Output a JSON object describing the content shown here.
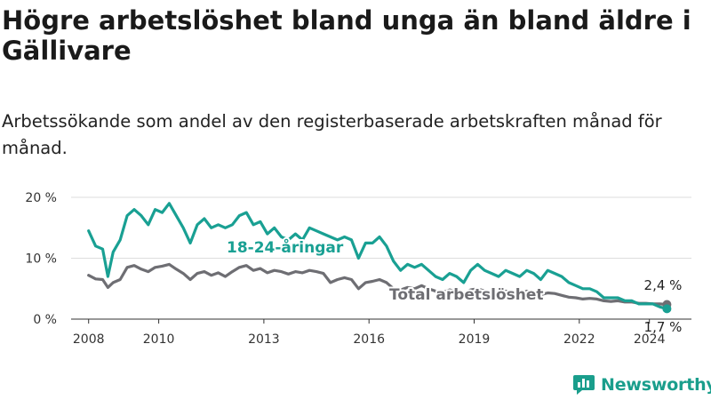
{
  "title": "Högre arbetslöshet bland unga än bland äldre i Gällivare",
  "subtitle": "Arbetssökande som andel av den registerbaserade arbetskraften månad för månad.",
  "brand": {
    "name": "Newsworthy",
    "color": "#1a9e8c"
  },
  "chart_data": {
    "type": "line",
    "ylim": [
      0,
      20
    ],
    "y_ticks": [
      0,
      10,
      20
    ],
    "y_tick_labels": [
      "0 %",
      "10 %",
      "20 %"
    ],
    "x_ticks": [
      2008,
      2010,
      2013,
      2016,
      2019,
      2022,
      2024
    ],
    "x_tick_labels": [
      "2008",
      "2010",
      "2013",
      "2016",
      "2019",
      "2022",
      "2024"
    ],
    "grid": true,
    "series": [
      {
        "name": "18-24-åringar",
        "color": "#19a093",
        "points": [
          [
            2008.0,
            14.5
          ],
          [
            2008.2,
            12.0
          ],
          [
            2008.4,
            11.5
          ],
          [
            2008.55,
            7.0
          ],
          [
            2008.7,
            11.0
          ],
          [
            2008.9,
            13.0
          ],
          [
            2009.1,
            17.0
          ],
          [
            2009.3,
            18.0
          ],
          [
            2009.5,
            17.0
          ],
          [
            2009.7,
            15.5
          ],
          [
            2009.9,
            18.0
          ],
          [
            2010.1,
            17.5
          ],
          [
            2010.3,
            19.0
          ],
          [
            2010.5,
            17.0
          ],
          [
            2010.7,
            15.0
          ],
          [
            2010.9,
            12.5
          ],
          [
            2011.1,
            15.5
          ],
          [
            2011.3,
            16.5
          ],
          [
            2011.5,
            15.0
          ],
          [
            2011.7,
            15.5
          ],
          [
            2011.9,
            15.0
          ],
          [
            2012.1,
            15.5
          ],
          [
            2012.3,
            17.0
          ],
          [
            2012.5,
            17.5
          ],
          [
            2012.7,
            15.5
          ],
          [
            2012.9,
            16.0
          ],
          [
            2013.1,
            14.0
          ],
          [
            2013.3,
            15.0
          ],
          [
            2013.5,
            13.5
          ],
          [
            2013.7,
            13.0
          ],
          [
            2013.9,
            14.0
          ],
          [
            2014.1,
            13.0
          ],
          [
            2014.3,
            15.0
          ],
          [
            2014.5,
            14.5
          ],
          [
            2014.7,
            14.0
          ],
          [
            2014.9,
            13.5
          ],
          [
            2015.1,
            13.0
          ],
          [
            2015.3,
            13.5
          ],
          [
            2015.5,
            13.0
          ],
          [
            2015.7,
            10.0
          ],
          [
            2015.9,
            12.5
          ],
          [
            2016.1,
            12.5
          ],
          [
            2016.3,
            13.5
          ],
          [
            2016.5,
            12.0
          ],
          [
            2016.7,
            9.5
          ],
          [
            2016.9,
            8.0
          ],
          [
            2017.1,
            9.0
          ],
          [
            2017.3,
            8.5
          ],
          [
            2017.5,
            9.0
          ],
          [
            2017.7,
            8.0
          ],
          [
            2017.9,
            7.0
          ],
          [
            2018.1,
            6.5
          ],
          [
            2018.3,
            7.5
          ],
          [
            2018.5,
            7.0
          ],
          [
            2018.7,
            6.0
          ],
          [
            2018.9,
            8.0
          ],
          [
            2019.1,
            9.0
          ],
          [
            2019.3,
            8.0
          ],
          [
            2019.5,
            7.5
          ],
          [
            2019.7,
            7.0
          ],
          [
            2019.9,
            8.0
          ],
          [
            2020.1,
            7.5
          ],
          [
            2020.3,
            7.0
          ],
          [
            2020.5,
            8.0
          ],
          [
            2020.7,
            7.5
          ],
          [
            2020.9,
            6.5
          ],
          [
            2021.1,
            8.0
          ],
          [
            2021.3,
            7.5
          ],
          [
            2021.5,
            7.0
          ],
          [
            2021.7,
            6.0
          ],
          [
            2021.9,
            5.5
          ],
          [
            2022.1,
            5.0
          ],
          [
            2022.3,
            5.0
          ],
          [
            2022.5,
            4.5
          ],
          [
            2022.7,
            3.5
          ],
          [
            2022.9,
            3.5
          ],
          [
            2023.1,
            3.5
          ],
          [
            2023.3,
            3.0
          ],
          [
            2023.5,
            3.0
          ],
          [
            2023.7,
            2.5
          ],
          [
            2023.9,
            2.5
          ],
          [
            2024.1,
            2.5
          ],
          [
            2024.3,
            2.0
          ],
          [
            2024.5,
            1.7
          ]
        ]
      },
      {
        "name": "Total arbetslöshet",
        "color": "#6e6e73",
        "points": [
          [
            2008.0,
            7.2
          ],
          [
            2008.2,
            6.6
          ],
          [
            2008.4,
            6.5
          ],
          [
            2008.55,
            5.2
          ],
          [
            2008.7,
            6.0
          ],
          [
            2008.9,
            6.5
          ],
          [
            2009.1,
            8.5
          ],
          [
            2009.3,
            8.8
          ],
          [
            2009.5,
            8.2
          ],
          [
            2009.7,
            7.8
          ],
          [
            2009.9,
            8.5
          ],
          [
            2010.1,
            8.7
          ],
          [
            2010.3,
            9.0
          ],
          [
            2010.5,
            8.2
          ],
          [
            2010.7,
            7.5
          ],
          [
            2010.9,
            6.5
          ],
          [
            2011.1,
            7.5
          ],
          [
            2011.3,
            7.8
          ],
          [
            2011.5,
            7.2
          ],
          [
            2011.7,
            7.6
          ],
          [
            2011.9,
            7.0
          ],
          [
            2012.1,
            7.8
          ],
          [
            2012.3,
            8.5
          ],
          [
            2012.5,
            8.8
          ],
          [
            2012.7,
            8.0
          ],
          [
            2012.9,
            8.3
          ],
          [
            2013.1,
            7.6
          ],
          [
            2013.3,
            8.0
          ],
          [
            2013.5,
            7.8
          ],
          [
            2013.7,
            7.4
          ],
          [
            2013.9,
            7.8
          ],
          [
            2014.1,
            7.6
          ],
          [
            2014.3,
            8.0
          ],
          [
            2014.5,
            7.8
          ],
          [
            2014.7,
            7.5
          ],
          [
            2014.9,
            6.0
          ],
          [
            2015.1,
            6.5
          ],
          [
            2015.3,
            6.8
          ],
          [
            2015.5,
            6.5
          ],
          [
            2015.7,
            5.0
          ],
          [
            2015.9,
            6.0
          ],
          [
            2016.1,
            6.2
          ],
          [
            2016.3,
            6.5
          ],
          [
            2016.5,
            6.0
          ],
          [
            2016.7,
            5.0
          ],
          [
            2016.9,
            4.8
          ],
          [
            2017.1,
            5.2
          ],
          [
            2017.3,
            5.0
          ],
          [
            2017.5,
            5.5
          ],
          [
            2017.7,
            5.0
          ],
          [
            2017.9,
            4.6
          ],
          [
            2018.1,
            4.4
          ],
          [
            2018.3,
            4.8
          ],
          [
            2018.5,
            4.5
          ],
          [
            2018.7,
            4.2
          ],
          [
            2018.9,
            4.8
          ],
          [
            2019.1,
            5.0
          ],
          [
            2019.3,
            4.6
          ],
          [
            2019.5,
            4.4
          ],
          [
            2019.7,
            4.3
          ],
          [
            2019.9,
            4.6
          ],
          [
            2020.1,
            4.5
          ],
          [
            2020.3,
            4.2
          ],
          [
            2020.5,
            4.6
          ],
          [
            2020.7,
            4.4
          ],
          [
            2020.9,
            4.0
          ],
          [
            2021.1,
            4.3
          ],
          [
            2021.3,
            4.2
          ],
          [
            2021.5,
            3.9
          ],
          [
            2021.7,
            3.6
          ],
          [
            2021.9,
            3.5
          ],
          [
            2022.1,
            3.3
          ],
          [
            2022.3,
            3.4
          ],
          [
            2022.5,
            3.3
          ],
          [
            2022.7,
            3.0
          ],
          [
            2022.9,
            2.9
          ],
          [
            2023.1,
            3.0
          ],
          [
            2023.3,
            2.8
          ],
          [
            2023.5,
            2.8
          ],
          [
            2023.7,
            2.6
          ],
          [
            2023.9,
            2.6
          ],
          [
            2024.1,
            2.5
          ],
          [
            2024.3,
            2.5
          ],
          [
            2024.5,
            2.4
          ]
        ]
      }
    ],
    "end_labels": {
      "total": "2,4 %",
      "youth": "1,7 %"
    }
  }
}
